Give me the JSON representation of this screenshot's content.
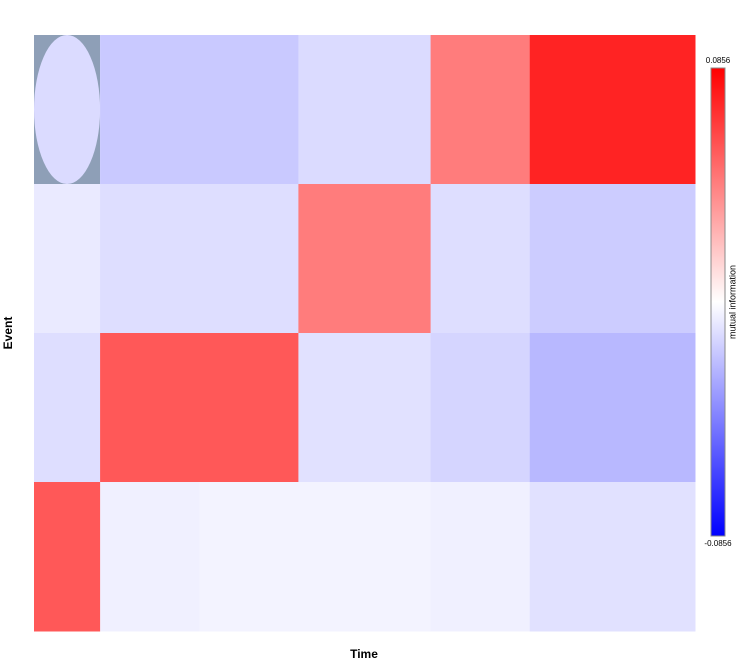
{
  "chart_data": {
    "type": "heatmap",
    "xlabel": "Time",
    "ylabel": "Event",
    "colorbar_label": "mutual information",
    "xbins": [
      0,
      2,
      5,
      8,
      12,
      15,
      20
    ],
    "xlim": [
      0,
      20
    ],
    "z": [
      [
        -0.012,
        -0.018,
        -0.018,
        -0.012,
        0.044,
        0.074
      ],
      [
        -0.007,
        -0.011,
        -0.011,
        0.044,
        -0.011,
        -0.017
      ],
      [
        -0.011,
        0.056,
        0.056,
        -0.01,
        -0.014,
        -0.024
      ],
      [
        0.056,
        -0.005,
        -0.004,
        -0.004,
        -0.005,
        -0.01
      ]
    ],
    "clim": [
      -0.0856,
      0.0856
    ],
    "cticks": [
      -0.0856,
      0.0856
    ],
    "colormap": [
      "#0000ff",
      "#ffffff",
      "#ff0000"
    ]
  }
}
